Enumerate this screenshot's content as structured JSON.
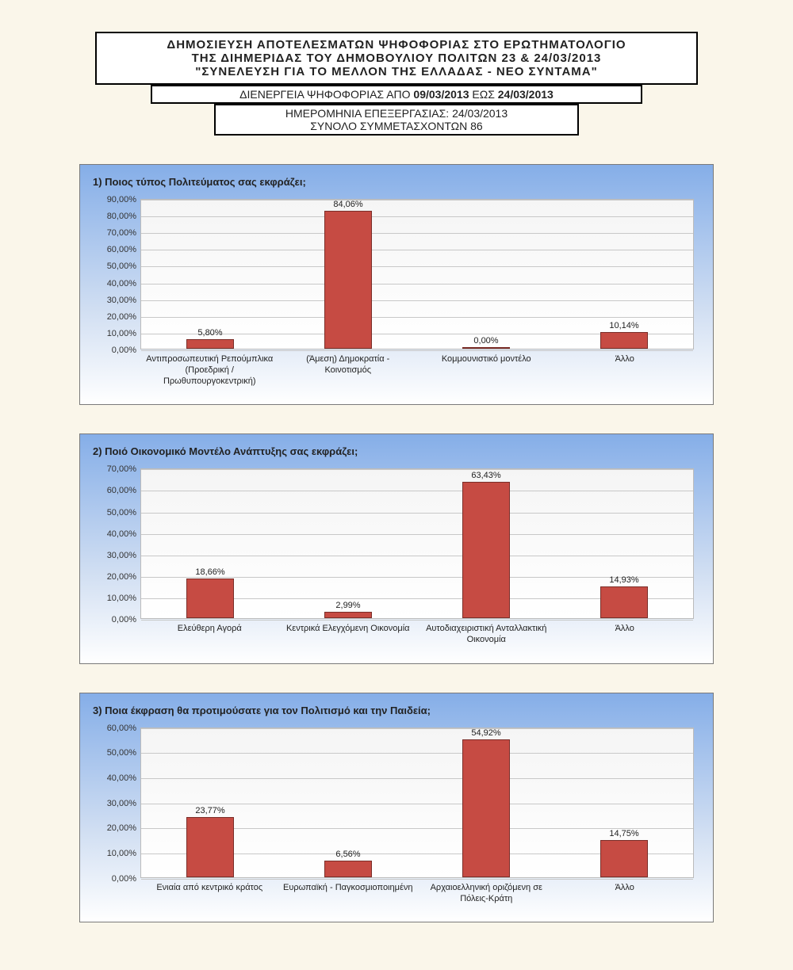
{
  "header": {
    "line1": "ΔΗΜΟΣΙΕΥΣΗ ΑΠΟΤΕΛΕΣΜΑΤΩΝ ΨΗΦΟΦΟΡΙΑΣ ΣΤΟ ΕΡΩΤΗΜΑΤΟΛΟΓΙΟ",
    "line2": "ΤΗΣ ΔΙΗΜΕΡΙΔΑΣ ΤΟΥ ΔΗΜΟΒΟΥΛΙΟΥ ΠΟΛΙΤΩΝ 23 & 24/03/2013",
    "line3": "\"ΣΥΝΕΛΕΥΣΗ ΓΙΑ ΤΟ ΜΕΛΛΟΝ ΤΗΣ ΕΛΛΑΔΑΣ - ΝΕΟ ΣΥΝΤΑΜΑ\"",
    "box2_prefix": "ΔΙΕΝΕΡΓΕΙΑ ΨΗΦΟΦΟΡΙΑΣ ΑΠΟ ",
    "box2_d1": "09/03/2013",
    "box2_mid": " ΕΩΣ ",
    "box2_d2": "24/03/2013",
    "box3_line1": "ΗΜΕΡΟΜΗΝΙΑ ΕΠΕΞΕΡΓΑΣΙΑΣ: 24/03/2013",
    "box3_line2": "ΣΥΝΟΛΟ ΣΥΜΜΕΤΑΣΧΟΝΤΩΝ 86"
  },
  "charts": [
    {
      "title": "1) Ποιος τύπος Πολιτεύματος σας εκφράζει;",
      "ymax": 90,
      "ystep": 10,
      "bar_color": "#c64b43",
      "categories": [
        "Αντιπροσωπευτική Ρεπούμπλικα (Προεδρική / Πρωθυπουργοκεντρική)",
        "(Άμεση) Δημοκρατία - Κοινοτισμός",
        "Κομμουνιστικό μοντέλο",
        "Άλλο"
      ],
      "values": [
        5.8,
        84.06,
        0.0,
        10.14
      ],
      "labels": [
        "5,80%",
        "84,06%",
        "0,00%",
        "10,14%"
      ]
    },
    {
      "title": "2) Ποιό Οικονομικό Μοντέλο Ανάπτυξης σας εκφράζει;",
      "ymax": 70,
      "ystep": 10,
      "bar_color": "#c64b43",
      "categories": [
        "Ελεύθερη Αγορά",
        "Κεντρικά Ελεγχόμενη Οικονομία",
        "Αυτοδιαχειριστική Ανταλλακτική Οικονομία",
        "Άλλο"
      ],
      "values": [
        18.66,
        2.99,
        63.43,
        14.93
      ],
      "labels": [
        "18,66%",
        "2,99%",
        "63,43%",
        "14,93%"
      ]
    },
    {
      "title": "3) Ποια έκφραση θα προτιμούσατε για τον Πολιτισμό και την Παιδεία;",
      "ymax": 60,
      "ystep": 10,
      "bar_color": "#c64b43",
      "categories": [
        "Ενιαία από κεντρικό κράτος",
        "Ευρωπαϊκή - Παγκοσμιοποιημένη",
        "Αρχαιοελληνική οριζόμενη σε Πόλεις-Κράτη",
        "Άλλο"
      ],
      "values": [
        23.77,
        6.56,
        54.92,
        14.75
      ],
      "labels": [
        "23,77%",
        "6,56%",
        "54,92%",
        "14,75%"
      ]
    }
  ],
  "style": {
    "page_bg": "#faf6ea",
    "panel_grad_top": "#85aee8",
    "panel_grad_bot": "#ffffff",
    "grid_color": "#c8c8c8",
    "bar_border": "#7a2e29",
    "tick_fontsize": 11,
    "title_fontsize": 13
  }
}
